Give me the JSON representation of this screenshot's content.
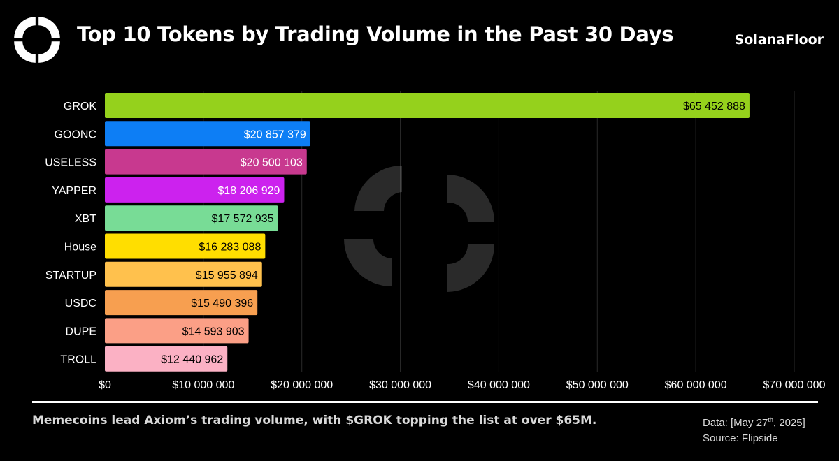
{
  "header": {
    "title": "Top 10 Tokens by Trading Volume in the Past 30 Days",
    "brand": "SolanaFloor"
  },
  "footer": {
    "caption": "Memecoins lead Axiom’s trading volume, with $GROK topping the list at over $65M.",
    "data_prefix": "Data: [May 27",
    "data_sup": "th",
    "data_suffix": ", 2025]",
    "source": "Source: Flipside"
  },
  "logo_icon": "solanafloor-logo-icon",
  "chart_data": {
    "type": "bar",
    "orientation": "horizontal",
    "categories": [
      "GROK",
      "GOONC",
      "USELESS",
      "YAPPER",
      "XBT",
      "House",
      "STARTUP",
      "USDC",
      "DUPE",
      "TROLL"
    ],
    "values": [
      65452888,
      20857379,
      20500103,
      18206929,
      17572935,
      16283088,
      15955894,
      15490396,
      14593903,
      12440962
    ],
    "data_labels": [
      "$65 452 888",
      "$20 857 379",
      "$20 500 103",
      "$18 206 929",
      "$17 572 935",
      "$16 283 088",
      "$15 955 894",
      "$15 490 396",
      "$14 593 903",
      "$12 440 962"
    ],
    "colors": [
      "#95d11c",
      "#0d7ef5",
      "#c8398f",
      "#cc22ee",
      "#78dc96",
      "#ffde00",
      "#ffc14d",
      "#f79f50",
      "#fb9f86",
      "#fbb1c4"
    ],
    "label_colors": [
      "#000000",
      "#ffffff",
      "#ffffff",
      "#ffffff",
      "#000000",
      "#000000",
      "#000000",
      "#000000",
      "#000000",
      "#000000"
    ],
    "xlim": [
      0,
      70000000
    ],
    "x_ticks": [
      0,
      10000000,
      20000000,
      30000000,
      40000000,
      50000000,
      60000000,
      70000000
    ],
    "x_tick_labels": [
      "$0",
      "$10 000 000",
      "$20 000 000",
      "$30 000 000",
      "$40 000 000",
      "$50 000 000",
      "$60 000 000",
      "$70 000 000"
    ],
    "grid": "vertical",
    "background_color": "#000000",
    "grid_color": "#2a2a2a",
    "watermark": "solanafloor-logo-watermark"
  }
}
